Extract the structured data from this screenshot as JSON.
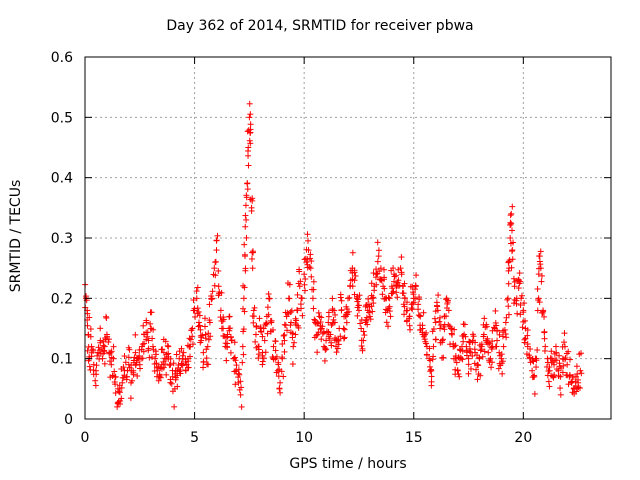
{
  "chart_data": {
    "type": "scatter",
    "title": "Day 362 of 2014, SRMTID for receiver pbwa",
    "xlabel": "GPS time / hours",
    "ylabel": "SRMTID / TECUs",
    "xlim": [
      0,
      24
    ],
    "ylim": [
      0,
      0.6
    ],
    "xticks": [
      0,
      5,
      10,
      15,
      20
    ],
    "xtick_labels": [
      "0",
      "5",
      "10",
      "15",
      "20"
    ],
    "yticks": [
      0,
      0.1,
      0.2,
      0.3,
      0.4,
      0.5,
      0.6
    ],
    "ytick_labels": [
      "0",
      "0.1",
      "0.2",
      "0.3",
      "0.4",
      "0.5",
      "0.6"
    ],
    "grid": true,
    "marker": "+",
    "color": "#ff0000",
    "series": [
      {
        "name": "SRMTID",
        "points": [
          [
            0.05,
            0.2
          ],
          [
            0.1,
            0.18
          ],
          [
            0.15,
            0.14
          ],
          [
            0.2,
            0.1
          ],
          [
            0.3,
            0.12
          ],
          [
            0.4,
            0.09
          ],
          [
            0.5,
            0.08
          ],
          [
            0.6,
            0.11
          ],
          [
            0.7,
            0.13
          ],
          [
            0.8,
            0.1
          ],
          [
            0.9,
            0.12
          ],
          [
            1.0,
            0.14
          ],
          [
            1.1,
            0.11
          ],
          [
            1.2,
            0.09
          ],
          [
            1.3,
            0.1
          ],
          [
            1.4,
            0.07
          ],
          [
            1.5,
            0.05
          ],
          [
            1.6,
            0.03
          ],
          [
            1.7,
            0.06
          ],
          [
            1.8,
            0.08
          ],
          [
            1.9,
            0.07
          ],
          [
            2.0,
            0.09
          ],
          [
            2.1,
            0.06
          ],
          [
            2.2,
            0.08
          ],
          [
            2.3,
            0.11
          ],
          [
            2.4,
            0.1
          ],
          [
            2.5,
            0.09
          ],
          [
            2.6,
            0.12
          ],
          [
            2.7,
            0.14
          ],
          [
            2.8,
            0.16
          ],
          [
            2.9,
            0.13
          ],
          [
            3.0,
            0.15
          ],
          [
            3.1,
            0.12
          ],
          [
            3.2,
            0.1
          ],
          [
            3.3,
            0.08
          ],
          [
            3.4,
            0.07
          ],
          [
            3.5,
            0.09
          ],
          [
            3.6,
            0.11
          ],
          [
            3.7,
            0.1
          ],
          [
            3.8,
            0.12
          ],
          [
            3.9,
            0.09
          ],
          [
            4.0,
            0.07
          ],
          [
            4.1,
            0.05
          ],
          [
            4.2,
            0.08
          ],
          [
            4.3,
            0.1
          ],
          [
            4.4,
            0.09
          ],
          [
            4.5,
            0.11
          ],
          [
            4.6,
            0.08
          ],
          [
            4.7,
            0.1
          ],
          [
            4.8,
            0.12
          ],
          [
            4.9,
            0.15
          ],
          [
            5.0,
            0.18
          ],
          [
            5.1,
            0.2
          ],
          [
            5.2,
            0.16
          ],
          [
            5.3,
            0.13
          ],
          [
            5.4,
            0.11
          ],
          [
            5.5,
            0.14
          ],
          [
            5.6,
            0.12
          ],
          [
            5.7,
            0.16
          ],
          [
            5.8,
            0.2
          ],
          [
            5.9,
            0.25
          ],
          [
            6.0,
            0.28
          ],
          [
            6.1,
            0.22
          ],
          [
            6.2,
            0.18
          ],
          [
            6.3,
            0.15
          ],
          [
            6.4,
            0.12
          ],
          [
            6.5,
            0.14
          ],
          [
            6.6,
            0.17
          ],
          [
            6.7,
            0.13
          ],
          [
            6.8,
            0.1
          ],
          [
            6.9,
            0.08
          ],
          [
            7.0,
            0.06
          ],
          [
            7.1,
            0.04
          ],
          [
            7.2,
            0.12
          ],
          [
            7.25,
            0.2
          ],
          [
            7.3,
            0.27
          ],
          [
            7.35,
            0.33
          ],
          [
            7.4,
            0.39
          ],
          [
            7.45,
            0.45
          ],
          [
            7.5,
            0.5
          ],
          [
            7.55,
            0.48
          ],
          [
            7.6,
            0.35
          ],
          [
            7.65,
            0.25
          ],
          [
            7.7,
            0.18
          ],
          [
            7.8,
            0.14
          ],
          [
            7.9,
            0.12
          ],
          [
            8.0,
            0.15
          ],
          [
            8.1,
            0.11
          ],
          [
            8.2,
            0.13
          ],
          [
            8.3,
            0.17
          ],
          [
            8.4,
            0.2
          ],
          [
            8.5,
            0.16
          ],
          [
            8.6,
            0.12
          ],
          [
            8.7,
            0.1
          ],
          [
            8.8,
            0.08
          ],
          [
            8.9,
            0.06
          ],
          [
            9.0,
            0.1
          ],
          [
            9.1,
            0.13
          ],
          [
            9.2,
            0.17
          ],
          [
            9.3,
            0.2
          ],
          [
            9.4,
            0.16
          ],
          [
            9.5,
            0.12
          ],
          [
            9.6,
            0.14
          ],
          [
            9.7,
            0.18
          ],
          [
            9.8,
            0.22
          ],
          [
            9.9,
            0.2
          ],
          [
            10.0,
            0.24
          ],
          [
            10.1,
            0.26
          ],
          [
            10.2,
            0.28
          ],
          [
            10.3,
            0.25
          ],
          [
            10.4,
            0.2
          ],
          [
            10.5,
            0.16
          ],
          [
            10.6,
            0.14
          ],
          [
            10.7,
            0.17
          ],
          [
            10.8,
            0.15
          ],
          [
            10.9,
            0.12
          ],
          [
            11.0,
            0.13
          ],
          [
            11.1,
            0.16
          ],
          [
            11.2,
            0.14
          ],
          [
            11.3,
            0.18
          ],
          [
            11.4,
            0.16
          ],
          [
            11.5,
            0.13
          ],
          [
            11.6,
            0.15
          ],
          [
            11.7,
            0.18
          ],
          [
            11.8,
            0.15
          ],
          [
            11.9,
            0.17
          ],
          [
            12.0,
            0.2
          ],
          [
            12.1,
            0.22
          ],
          [
            12.2,
            0.25
          ],
          [
            12.3,
            0.23
          ],
          [
            12.4,
            0.2
          ],
          [
            12.5,
            0.18
          ],
          [
            12.6,
            0.15
          ],
          [
            12.7,
            0.13
          ],
          [
            12.8,
            0.16
          ],
          [
            12.9,
            0.18
          ],
          [
            13.0,
            0.17
          ],
          [
            13.1,
            0.2
          ],
          [
            13.2,
            0.22
          ],
          [
            13.3,
            0.24
          ],
          [
            13.4,
            0.27
          ],
          [
            13.5,
            0.25
          ],
          [
            13.6,
            0.22
          ],
          [
            13.7,
            0.2
          ],
          [
            13.8,
            0.18
          ],
          [
            13.9,
            0.2
          ],
          [
            14.0,
            0.22
          ],
          [
            14.1,
            0.24
          ],
          [
            14.2,
            0.21
          ],
          [
            14.3,
            0.23
          ],
          [
            14.4,
            0.25
          ],
          [
            14.5,
            0.22
          ],
          [
            14.6,
            0.2
          ],
          [
            14.7,
            0.18
          ],
          [
            14.8,
            0.17
          ],
          [
            14.9,
            0.19
          ],
          [
            15.0,
            0.2
          ],
          [
            15.1,
            0.22
          ],
          [
            15.2,
            0.19
          ],
          [
            15.3,
            0.17
          ],
          [
            15.4,
            0.15
          ],
          [
            15.5,
            0.14
          ],
          [
            15.6,
            0.12
          ],
          [
            15.7,
            0.1
          ],
          [
            15.8,
            0.08
          ],
          [
            15.9,
            0.12
          ],
          [
            16.0,
            0.16
          ],
          [
            16.1,
            0.18
          ],
          [
            16.2,
            0.15
          ],
          [
            16.3,
            0.13
          ],
          [
            16.4,
            0.17
          ],
          [
            16.5,
            0.2
          ],
          [
            16.6,
            0.18
          ],
          [
            16.7,
            0.15
          ],
          [
            16.8,
            0.12
          ],
          [
            16.9,
            0.1
          ],
          [
            17.0,
            0.08
          ],
          [
            17.1,
            0.1
          ],
          [
            17.2,
            0.12
          ],
          [
            17.3,
            0.14
          ],
          [
            17.4,
            0.12
          ],
          [
            17.5,
            0.1
          ],
          [
            17.6,
            0.11
          ],
          [
            17.7,
            0.13
          ],
          [
            17.8,
            0.11
          ],
          [
            17.9,
            0.09
          ],
          [
            18.0,
            0.1
          ],
          [
            18.1,
            0.12
          ],
          [
            18.2,
            0.14
          ],
          [
            18.3,
            0.13
          ],
          [
            18.4,
            0.11
          ],
          [
            18.5,
            0.1
          ],
          [
            18.6,
            0.12
          ],
          [
            18.7,
            0.15
          ],
          [
            18.8,
            0.13
          ],
          [
            18.9,
            0.11
          ],
          [
            19.0,
            0.1
          ],
          [
            19.1,
            0.12
          ],
          [
            19.2,
            0.16
          ],
          [
            19.3,
            0.2
          ],
          [
            19.35,
            0.25
          ],
          [
            19.4,
            0.3
          ],
          [
            19.45,
            0.34
          ],
          [
            19.5,
            0.28
          ],
          [
            19.6,
            0.22
          ],
          [
            19.7,
            0.2
          ],
          [
            19.8,
            0.23
          ],
          [
            19.9,
            0.2
          ],
          [
            20.0,
            0.18
          ],
          [
            20.1,
            0.15
          ],
          [
            20.2,
            0.12
          ],
          [
            20.3,
            0.1
          ],
          [
            20.4,
            0.08
          ],
          [
            20.5,
            0.07
          ],
          [
            20.6,
            0.1
          ],
          [
            20.7,
            0.2
          ],
          [
            20.75,
            0.27
          ],
          [
            20.8,
            0.25
          ],
          [
            20.9,
            0.18
          ],
          [
            21.0,
            0.12
          ],
          [
            21.1,
            0.1
          ],
          [
            21.2,
            0.08
          ],
          [
            21.3,
            0.1
          ],
          [
            21.4,
            0.09
          ],
          [
            21.5,
            0.11
          ],
          [
            21.6,
            0.08
          ],
          [
            21.7,
            0.07
          ],
          [
            21.8,
            0.1
          ],
          [
            21.9,
            0.12
          ],
          [
            22.0,
            0.09
          ],
          [
            22.1,
            0.07
          ],
          [
            22.2,
            0.06
          ],
          [
            22.3,
            0.05
          ],
          [
            22.4,
            0.07
          ],
          [
            22.5,
            0.06
          ],
          [
            22.6,
            0.08
          ]
        ]
      }
    ]
  }
}
